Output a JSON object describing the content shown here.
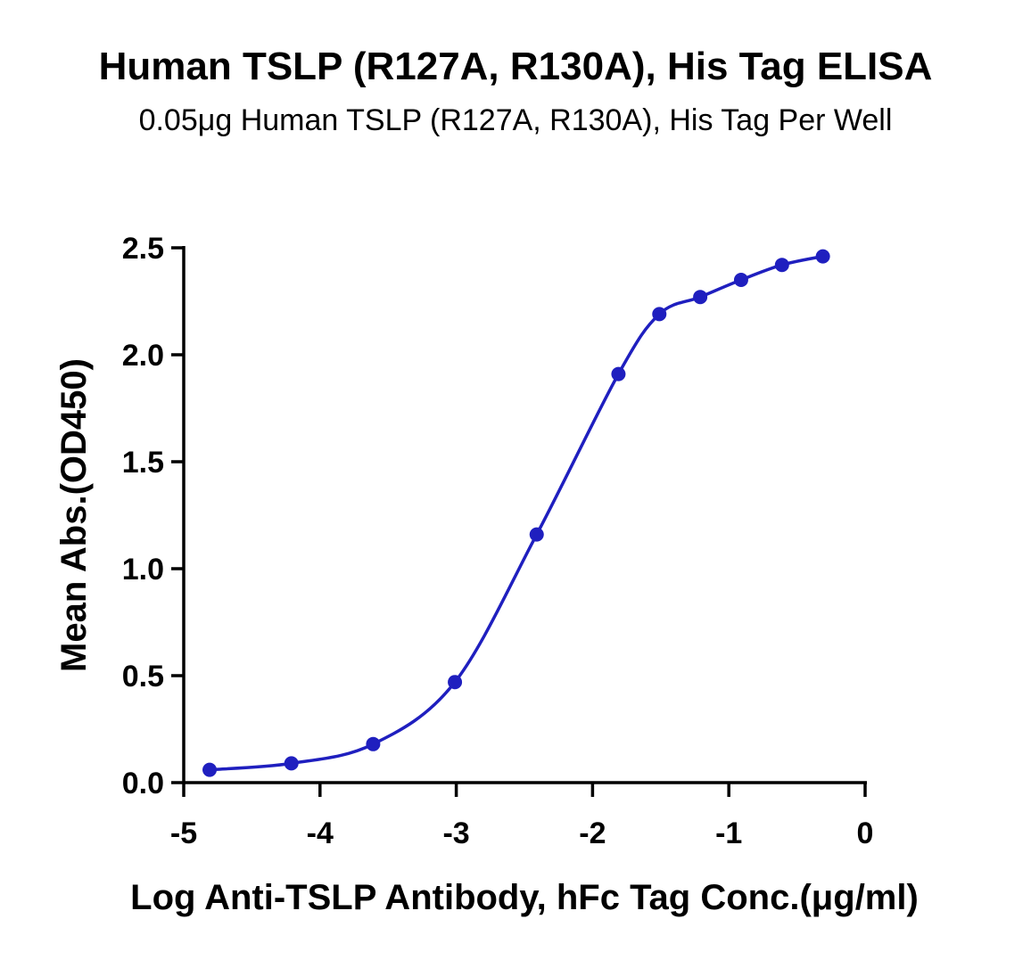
{
  "chart_data": {
    "type": "scatter",
    "title": "Human TSLP (R127A, R130A), His Tag ELISA",
    "subtitle": "0.05μg Human TSLP (R127A, R130A), His Tag Per Well",
    "xlabel": "Log Anti-TSLP Antibody, hFc Tag Conc.(μg/ml)",
    "ylabel": "Mean Abs.(OD450)",
    "xlim": [
      -5,
      0
    ],
    "ylim": [
      0,
      2.5
    ],
    "xticks": [
      "-5",
      "-4",
      "-3",
      "-2",
      "-1",
      "0"
    ],
    "yticks": [
      "0.0",
      "0.5",
      "1.0",
      "1.5",
      "2.0",
      "2.5"
    ],
    "grid": false,
    "color": "#1f1fbf",
    "series": [
      {
        "x": [
          -4.81,
          -4.21,
          -3.61,
          -3.01,
          -2.41,
          -1.81,
          -1.51,
          -1.21,
          -0.91,
          -0.61,
          -0.31
        ],
        "y": [
          0.06,
          0.09,
          0.18,
          0.47,
          1.16,
          1.91,
          2.19,
          2.27,
          2.35,
          2.42,
          2.46
        ],
        "fit": "four-parameter logistic curve"
      }
    ]
  }
}
